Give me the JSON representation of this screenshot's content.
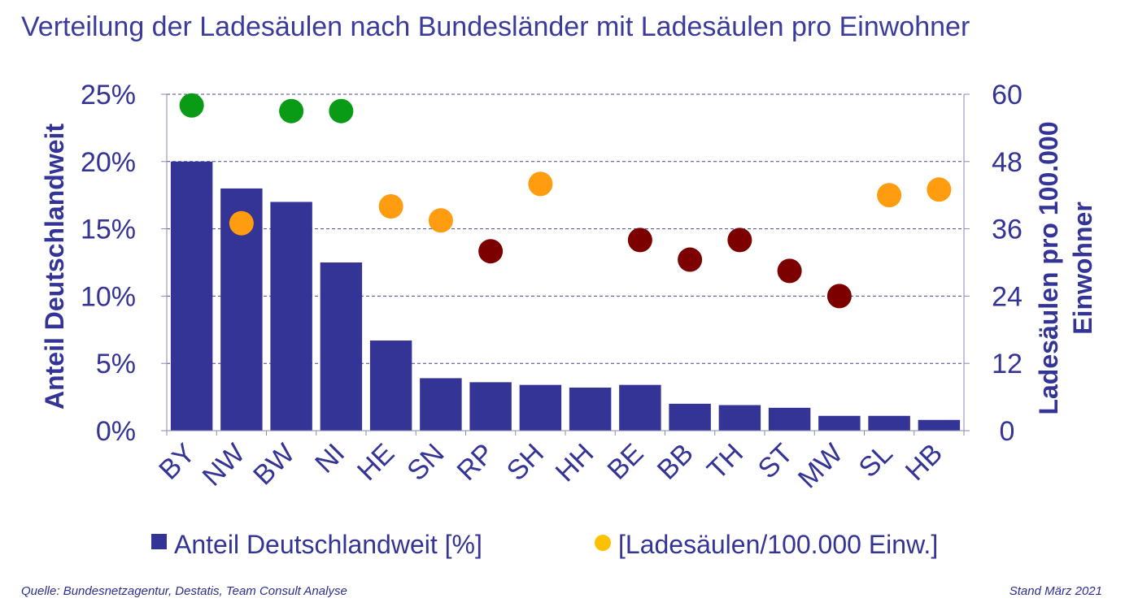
{
  "title": "Verteilung der Ladesäulen nach Bundesländer mit Ladesäulen pro Einwohner",
  "footer": {
    "source": "Quelle: Bundesnetzagentur,  Destatis, Team Consult Analyse",
    "date": "Stand März 2021"
  },
  "colors": {
    "bar": "#343496",
    "text": "#343496",
    "dot_high": "#0a9b16",
    "dot_mid": "#ff9c0f",
    "dot_low": "#7d0000",
    "legend_dot": "#ffc000"
  },
  "chart_data": {
    "type": "bar",
    "categories": [
      "BY",
      "NW",
      "BW",
      "NI",
      "HE",
      "SN",
      "RP",
      "SH",
      "HH",
      "BE",
      "BB",
      "TH",
      "ST",
      "MW",
      "SL",
      "HB"
    ],
    "ylabel": "Anteil Deutschlandweit",
    "ylabel_right": "Ladesäulen pro 100.000 Einwohner",
    "ylim": [
      0,
      25
    ],
    "y_ticks": [
      "0%",
      "5%",
      "10%",
      "15%",
      "20%",
      "25%"
    ],
    "ylim_right": [
      0,
      60
    ],
    "y_ticks_right": [
      "0",
      "12",
      "24",
      "36",
      "48",
      "60"
    ],
    "grid": true,
    "legend_position": "bottom",
    "series": [
      {
        "name": "Anteil Deutschlandweit [%]",
        "type": "bar",
        "axis": "left",
        "values": [
          20.0,
          18.0,
          17.0,
          12.5,
          6.7,
          3.9,
          3.6,
          3.4,
          3.2,
          3.4,
          2.0,
          1.9,
          1.7,
          1.1,
          1.1,
          0.8
        ]
      },
      {
        "name": "[Ladesäulen/100.000 Einw.]",
        "type": "scatter",
        "axis": "right",
        "values": [
          58.0,
          37.0,
          57.0,
          57.0,
          40.0,
          37.5,
          32.0,
          44.0,
          null,
          34.0,
          30.5,
          34.0,
          28.5,
          24.0,
          42.0,
          43.0
        ],
        "levels": [
          "high",
          "mid",
          "high",
          "high",
          "mid",
          "mid",
          "low",
          "mid",
          null,
          "low",
          "low",
          "low",
          "low",
          "low",
          "mid",
          "mid"
        ]
      }
    ]
  }
}
